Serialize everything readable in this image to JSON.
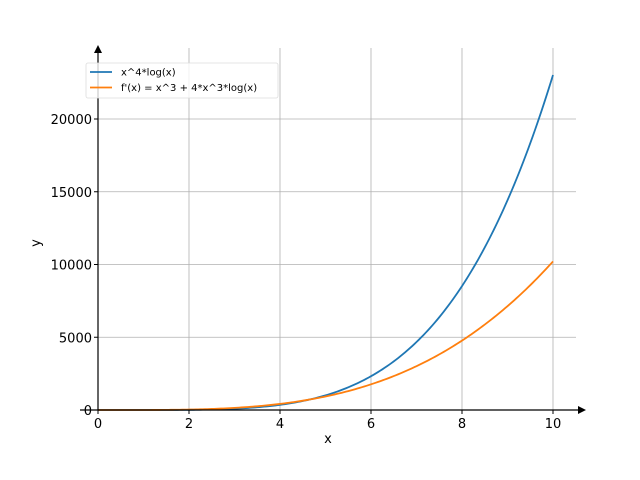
{
  "chart_data": {
    "type": "line",
    "title": "",
    "xlabel": "x",
    "ylabel": "y",
    "xlim": [
      0,
      10.5
    ],
    "ylim": [
      0,
      25000
    ],
    "xticks": [
      0,
      2,
      4,
      6,
      8,
      10
    ],
    "yticks": [
      0,
      5000,
      10000,
      15000,
      20000
    ],
    "grid": true,
    "legend_position": "top-left",
    "series": [
      {
        "name": "x^4*log(x)",
        "color": "#1f77b4",
        "x": [
          0,
          1,
          2,
          3,
          4,
          5,
          6,
          7,
          8,
          9,
          10
        ],
        "y": [
          0,
          0,
          11.1,
          89.0,
          354.9,
          1006.0,
          2322.6,
          4672.3,
          8518.3,
          14414.9,
          23025.9
        ]
      },
      {
        "name": "f'(x) = x^3 + 4*x^3*log(x)",
        "color": "#ff7f0e",
        "x": [
          0,
          1,
          2,
          3,
          4,
          5,
          6,
          7,
          8,
          9,
          10
        ],
        "y": [
          0,
          1,
          30.2,
          145.6,
          418.9,
          929.7,
          1764.4,
          3013.9,
          4771.2,
          7135.2,
          10210.3
        ]
      }
    ]
  }
}
